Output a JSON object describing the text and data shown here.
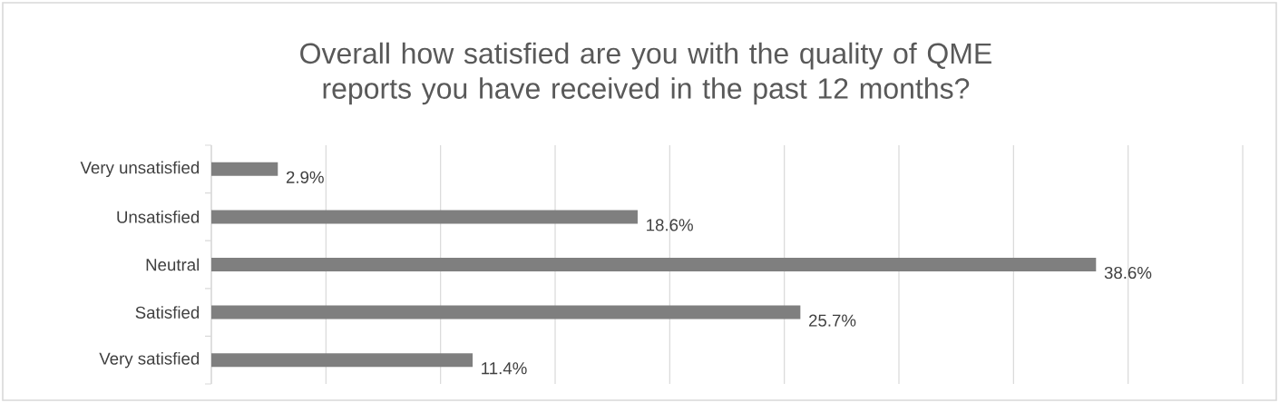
{
  "chart_data": {
    "type": "bar",
    "orientation": "horizontal",
    "title": "Overall how satisfied are you with the quality of QME reports you have received in the past 12 months?",
    "categories": [
      "Very unsatisfied",
      "Unsatisfied",
      "Neutral",
      "Satisfied",
      "Very satisfied"
    ],
    "values": [
      2.9,
      18.6,
      38.6,
      25.7,
      11.4
    ],
    "value_labels": [
      "2.9%",
      "18.6%",
      "38.6%",
      "25.7%",
      "11.4%"
    ],
    "color": "#7f7f7f",
    "xlim": [
      0,
      45
    ],
    "xticks": [
      {
        "value": 0,
        "label": null
      },
      {
        "value": 5,
        "label": null
      },
      {
        "value": 10,
        "label": null
      },
      {
        "value": 15,
        "label": null
      },
      {
        "value": 20,
        "label": null
      },
      {
        "value": 25,
        "label": null
      },
      {
        "value": 30,
        "label": null
      },
      {
        "value": 35,
        "label": null
      },
      {
        "value": 40,
        "label": null
      },
      {
        "value": 45,
        "label": null
      }
    ],
    "grid": "x",
    "tick_labels": "y"
  }
}
